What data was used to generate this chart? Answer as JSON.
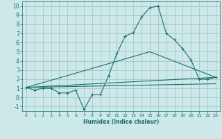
{
  "xlabel": "Humidex (Indice chaleur)",
  "background_color": "#cce8e8",
  "grid_color": "#aacccc",
  "line_color": "#1a6e6e",
  "xlim": [
    -0.5,
    23.5
  ],
  "ylim": [
    -1.5,
    10.5
  ],
  "xticks": [
    0,
    1,
    2,
    3,
    4,
    5,
    6,
    7,
    8,
    9,
    10,
    11,
    12,
    13,
    14,
    15,
    16,
    17,
    18,
    19,
    20,
    21,
    22,
    23
  ],
  "yticks": [
    -1,
    0,
    1,
    2,
    3,
    4,
    5,
    6,
    7,
    8,
    9,
    10
  ],
  "line1_x": [
    0,
    1,
    2,
    3,
    4,
    5,
    6,
    7,
    8,
    9,
    10,
    11,
    12,
    13,
    14,
    15,
    16,
    17,
    18,
    19,
    20,
    21,
    22,
    23
  ],
  "line1_y": [
    1.1,
    0.8,
    1.0,
    1.0,
    0.5,
    0.5,
    0.8,
    -1.3,
    0.3,
    0.3,
    2.4,
    4.8,
    6.7,
    7.1,
    8.8,
    9.8,
    10.0,
    7.0,
    6.3,
    5.3,
    4.1,
    2.0,
    2.0,
    2.2
  ],
  "line2_x": [
    0,
    23
  ],
  "line2_y": [
    1.1,
    2.2
  ],
  "line3_x": [
    0,
    15,
    23
  ],
  "line3_y": [
    1.1,
    5.0,
    2.2
  ],
  "line4_x": [
    0,
    23
  ],
  "line4_y": [
    1.1,
    1.5
  ]
}
